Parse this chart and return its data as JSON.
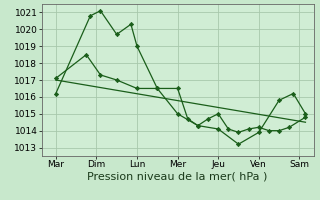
{
  "xlabel": "Pression niveau de la mer( hPa )",
  "background_color": "#c8e8cc",
  "plot_bg_color": "#d0edd4",
  "grid_color": "#a8c8ac",
  "line_color": "#1a5e1a",
  "ylim": [
    1012.5,
    1021.5
  ],
  "xlim": [
    -0.2,
    13.2
  ],
  "xtick_labels": [
    "Mar",
    "Dim",
    "Lun",
    "Mer",
    "Jeu",
    "Ven",
    "Sam"
  ],
  "xtick_positions": [
    0.5,
    2.5,
    4.5,
    6.5,
    8.5,
    10.5,
    12.5
  ],
  "ytick_vals": [
    1013,
    1014,
    1015,
    1016,
    1017,
    1018,
    1019,
    1020,
    1021
  ],
  "series1_x": [
    0.5,
    2.2,
    2.7,
    3.5,
    4.2,
    4.5,
    5.5,
    6.5,
    7.0,
    7.5,
    8.0,
    8.5,
    9.0,
    9.5,
    10.0,
    10.5,
    11.0,
    11.5,
    12.0,
    12.8
  ],
  "series1_y": [
    1016.2,
    1020.8,
    1021.1,
    1019.7,
    1020.3,
    1019.0,
    1016.5,
    1016.5,
    1014.7,
    1014.3,
    1014.7,
    1015.0,
    1014.1,
    1013.9,
    1014.1,
    1014.2,
    1014.0,
    1014.0,
    1014.2,
    1014.8
  ],
  "series2_x": [
    0.5,
    2.0,
    2.7,
    3.5,
    4.5,
    5.5,
    6.5,
    7.5,
    8.5,
    9.5,
    10.5,
    11.5,
    12.2,
    12.8
  ],
  "series2_y": [
    1017.1,
    1018.5,
    1017.3,
    1017.0,
    1016.5,
    1016.5,
    1015.0,
    1014.3,
    1014.1,
    1013.2,
    1013.9,
    1015.8,
    1016.2,
    1015.0
  ],
  "trend_x": [
    0.5,
    12.8
  ],
  "trend_y": [
    1017.0,
    1014.5
  ],
  "font_size_label": 8,
  "font_size_tick": 6.5
}
